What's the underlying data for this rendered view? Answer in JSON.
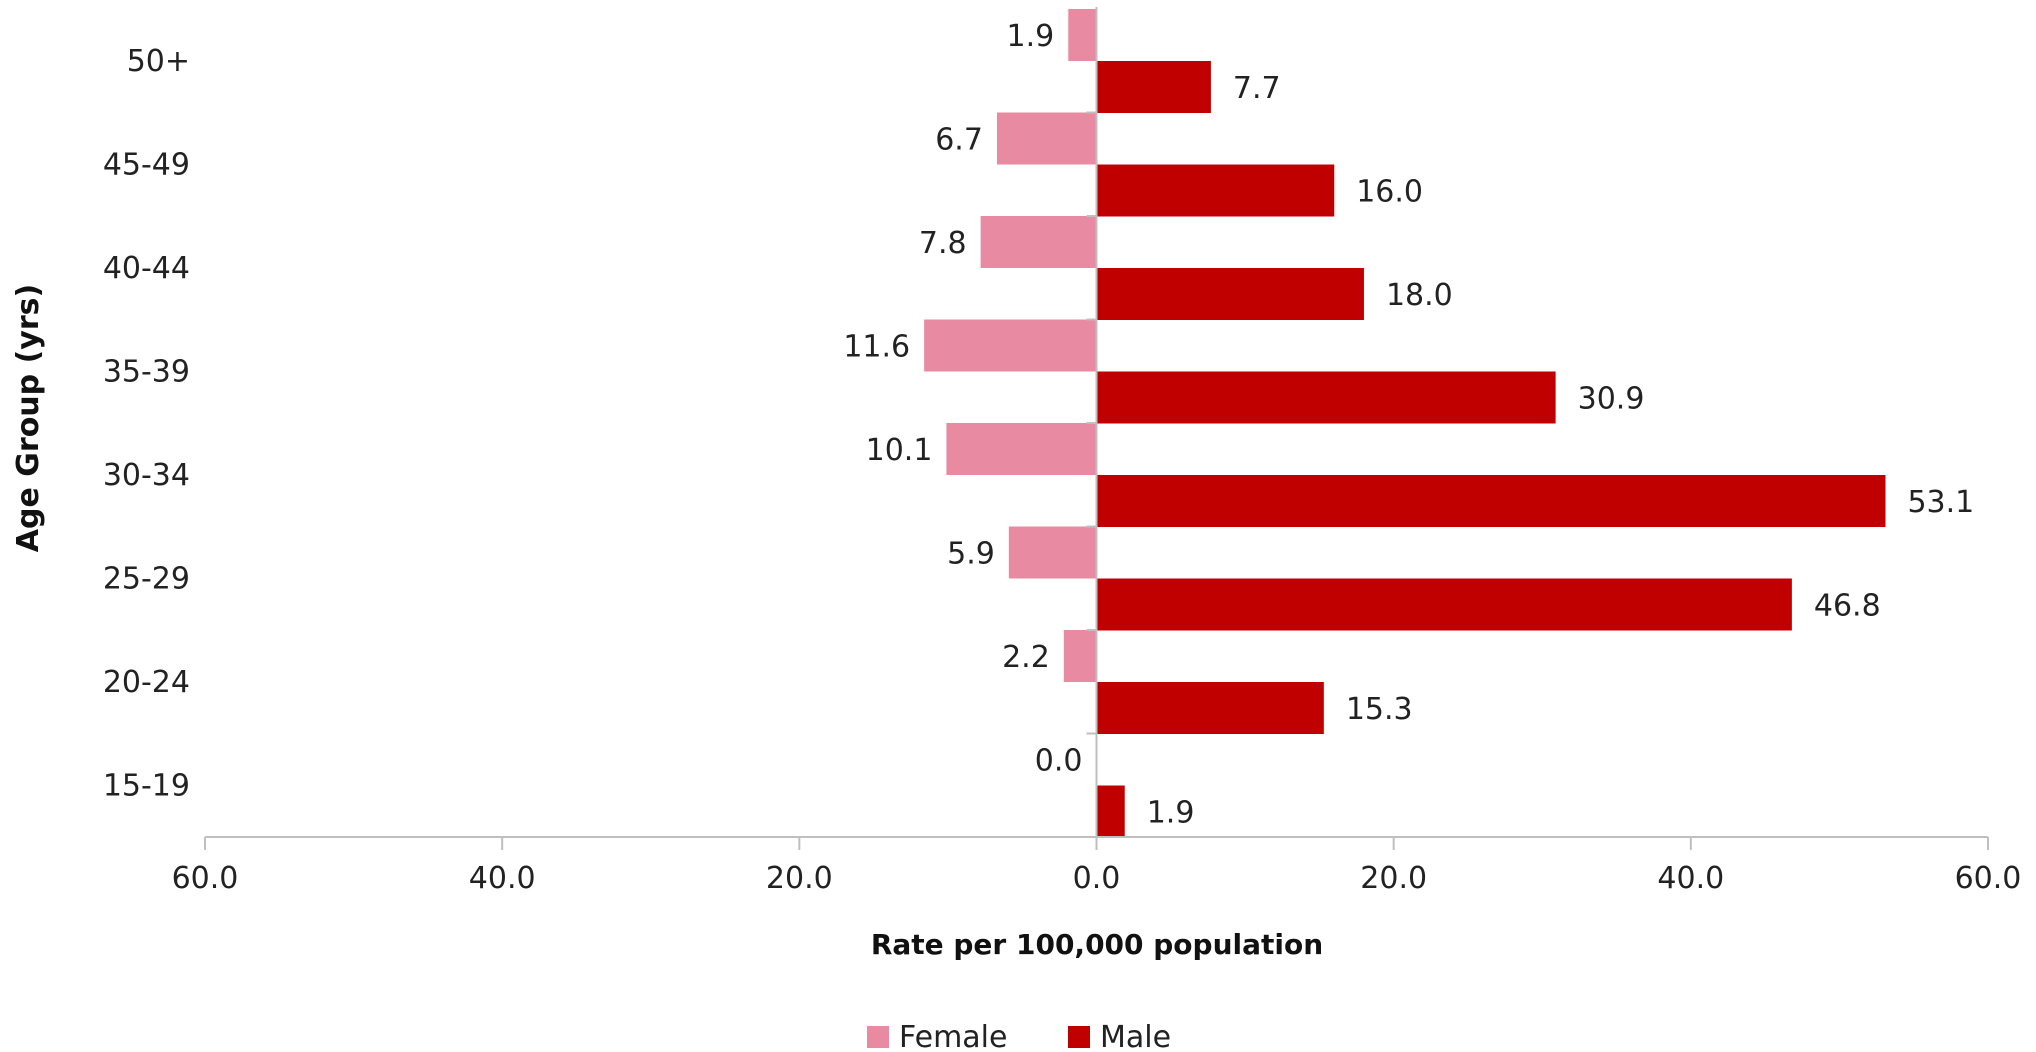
{
  "chart_data": {
    "type": "bar",
    "orientation": "horizontal",
    "layout": "diverging",
    "categories": [
      "50+",
      "45-49",
      "40-44",
      "35-39",
      "30-34",
      "25-29",
      "20-24",
      "15-19"
    ],
    "series": [
      {
        "name": "Female",
        "color": "#e98aa3",
        "direction": "left",
        "values": [
          1.9,
          6.7,
          7.8,
          11.6,
          10.1,
          5.9,
          2.2,
          0.0
        ],
        "labels": [
          "1.9",
          "6.7",
          "7.8",
          "11.6",
          "10.1",
          "5.9",
          "2.2",
          "0.0"
        ]
      },
      {
        "name": "Male",
        "color": "#c00000",
        "direction": "right",
        "values": [
          7.7,
          16.0,
          18.0,
          30.9,
          53.1,
          46.8,
          15.3,
          1.9
        ],
        "labels": [
          "7.7",
          "16.0",
          "18.0",
          "30.9",
          "53.1",
          "46.8",
          "15.3",
          "1.9"
        ]
      }
    ],
    "xlim": [
      -60,
      60
    ],
    "xticks": [
      -60,
      -40,
      -20,
      0,
      20,
      40,
      60
    ],
    "xtick_labels": [
      "60.0",
      "40.0",
      "20.0",
      "0.0",
      "20.0",
      "40.0",
      "60.0"
    ],
    "xlabel": "Rate per 100,000 population",
    "ylabel": "Age Group (yrs)",
    "title": "",
    "grid": false,
    "legend": {
      "position": "bottom",
      "entries": [
        "Female",
        "Male"
      ]
    }
  }
}
